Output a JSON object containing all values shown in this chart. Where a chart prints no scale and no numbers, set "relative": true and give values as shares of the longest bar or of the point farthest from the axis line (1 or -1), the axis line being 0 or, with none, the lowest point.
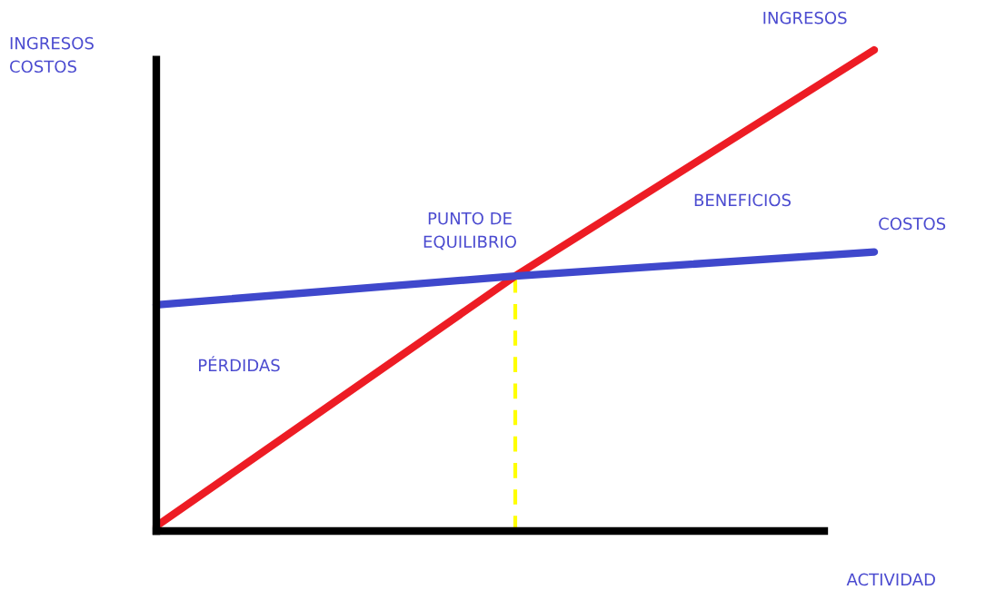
{
  "chart_data": {
    "type": "line",
    "relative": true,
    "xlabel": "ACTIVIDAD",
    "ylabel": "INGRESOS\nCOSTOS",
    "categories": [
      null,
      null,
      null
    ],
    "series": [
      {
        "name": "INGRESOS",
        "color": "#ed1c24",
        "values": [
          0.01,
          0.53,
          1
        ]
      },
      {
        "name": "COSTOS",
        "color": "#3f48cc",
        "values": [
          0.47,
          0.53,
          0.58
        ]
      }
    ],
    "annotations": [
      "PUNTO DE\nEQUILIBRIO",
      "BENEFICIOS",
      "PÉRDIDAS"
    ]
  }
}
